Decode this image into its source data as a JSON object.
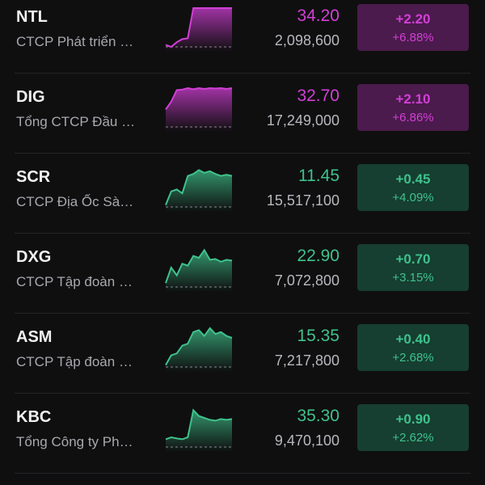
{
  "rows": [
    {
      "ticker": "NTL",
      "name": "CTCP Phát triển …",
      "price": "34.20",
      "volume": "2,098,600",
      "change": "+2.20",
      "percent": "+6.88%",
      "color": "#d23fd6",
      "box": "#4a1b4c",
      "sparkline": [
        0.05,
        0.0,
        0.12,
        0.2,
        0.22,
        1,
        1,
        1,
        1,
        1,
        1,
        1,
        1
      ]
    },
    {
      "ticker": "DIG",
      "name": "Tổng CTCP Đầu …",
      "price": "32.70",
      "volume": "17,249,000",
      "change": "+2.10",
      "percent": "+6.86%",
      "color": "#d23fd6",
      "box": "#4a1b4c",
      "sparkline": [
        0.45,
        0.65,
        0.95,
        0.96,
        1,
        0.97,
        1,
        0.98,
        1,
        0.99,
        1,
        0.98,
        1
      ]
    },
    {
      "ticker": "SCR",
      "name": "CTCP Địa Ốc Sà…",
      "price": "11.45",
      "volume": "15,517,100",
      "change": "+0.45",
      "percent": "+4.09%",
      "color": "#3fc28c",
      "box": "#163e31",
      "sparkline": [
        0.05,
        0.4,
        0.45,
        0.35,
        0.8,
        0.85,
        0.95,
        0.88,
        0.92,
        0.85,
        0.8,
        0.83,
        0.8
      ]
    },
    {
      "ticker": "DXG",
      "name": "CTCP Tập đoàn …",
      "price": "22.90",
      "volume": "7,072,800",
      "change": "+0.70",
      "percent": "+3.15%",
      "color": "#3fc28c",
      "box": "#163e31",
      "sparkline": [
        0.1,
        0.5,
        0.3,
        0.6,
        0.55,
        0.8,
        0.75,
        0.95,
        0.7,
        0.72,
        0.65,
        0.7,
        0.68
      ]
    },
    {
      "ticker": "ASM",
      "name": "CTCP Tập đoàn …",
      "price": "15.35",
      "volume": "7,217,800",
      "change": "+0.40",
      "percent": "+2.68%",
      "color": "#3fc28c",
      "box": "#163e31",
      "sparkline": [
        0.05,
        0.3,
        0.35,
        0.55,
        0.6,
        0.9,
        0.95,
        0.8,
        1,
        0.85,
        0.9,
        0.8,
        0.75
      ]
    },
    {
      "ticker": "KBC",
      "name": "Tổng Công ty Ph…",
      "price": "35.30",
      "volume": "9,470,100",
      "change": "+0.90",
      "percent": "+2.62%",
      "color": "#3fc28c",
      "box": "#163e31",
      "sparkline": [
        0.2,
        0.25,
        0.22,
        0.2,
        0.25,
        0.95,
        0.8,
        0.75,
        0.7,
        0.68,
        0.72,
        0.7,
        0.72
      ]
    }
  ]
}
